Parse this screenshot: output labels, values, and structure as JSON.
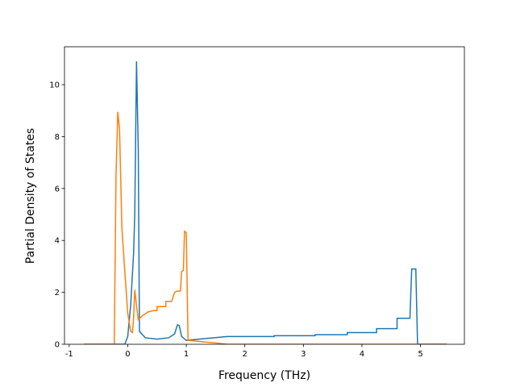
{
  "chart_data": {
    "type": "line",
    "x_label": "Frequency (THz)",
    "y_label": "Partial Density of States",
    "xlim": [
      -1.08,
      5.75
    ],
    "ylim": [
      0,
      11.46
    ],
    "xticks": [
      -1,
      0,
      1,
      2,
      3,
      4,
      5
    ],
    "yticks": [
      0,
      2,
      4,
      6,
      8,
      10
    ],
    "series": [
      {
        "color": "#1f77b4",
        "x": [
          -0.75,
          -0.05,
          0,
          0.05,
          0.1,
          0.12,
          0.15,
          0.18,
          0.2,
          0.3,
          0.5,
          0.7,
          0.8,
          0.85,
          0.88,
          0.92,
          1.0,
          1.7,
          2.5,
          2.5,
          3.2,
          3.2,
          3.75,
          3.75,
          4.25,
          4.25,
          4.6,
          4.6,
          4.82,
          4.85,
          4.92,
          4.95,
          5.45
        ],
        "values": [
          0,
          0,
          0.3,
          1.5,
          3.5,
          5,
          10.9,
          7.5,
          0.5,
          0.25,
          0.2,
          0.25,
          0.4,
          0.75,
          0.72,
          0.3,
          0.15,
          0.3,
          0.3,
          0.33,
          0.33,
          0.37,
          0.37,
          0.45,
          0.45,
          0.6,
          0.6,
          1.0,
          1.0,
          2.9,
          2.9,
          0,
          0
        ]
      },
      {
        "color": "#ff7f0e",
        "x": [
          -0.75,
          -0.23,
          -0.2,
          -0.17,
          -0.14,
          -0.1,
          -0.05,
          0,
          0.05,
          0.08,
          0.1,
          0.12,
          0.15,
          0.18,
          0.25,
          0.35,
          0.45,
          0.5,
          0.5,
          0.65,
          0.65,
          0.75,
          0.8,
          0.85,
          0.9,
          0.92,
          0.95,
          0.97,
          1.0,
          1.03,
          1.5,
          1.7,
          5.45
        ],
        "values": [
          0,
          0,
          6.5,
          8.95,
          8.3,
          4.5,
          2.8,
          1.2,
          0.5,
          0.45,
          1.0,
          2.1,
          1.5,
          0.95,
          1.1,
          1.25,
          1.3,
          1.3,
          1.45,
          1.45,
          1.65,
          1.65,
          2.0,
          2.05,
          2.05,
          2.8,
          2.85,
          4.35,
          4.3,
          0.15,
          0.05,
          0,
          0
        ]
      }
    ]
  }
}
